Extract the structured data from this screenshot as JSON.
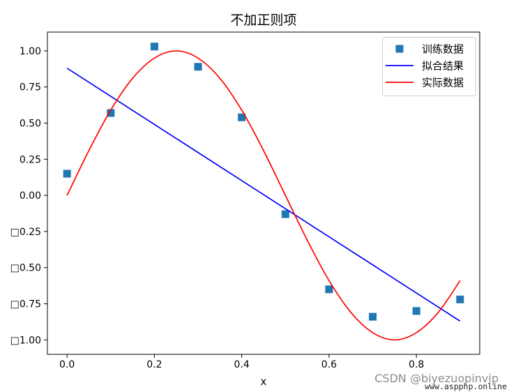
{
  "chart_data": {
    "type": "line",
    "title": "不加正则项",
    "xlabel": "x",
    "xlim": [
      -0.045,
      0.945
    ],
    "ylim": [
      -1.1,
      1.13
    ],
    "xticks": [
      0.0,
      0.2,
      0.4,
      0.6,
      0.8
    ],
    "xtick_labels": [
      "0.0",
      "0.2",
      "0.4",
      "0.6",
      "0.8"
    ],
    "yticks": [
      1.0,
      0.75,
      0.5,
      0.25,
      0.0,
      -0.25,
      -0.5,
      -0.75,
      -1.0
    ],
    "ytick_labels": [
      "1.00",
      "0.75",
      "0.50",
      "0.25",
      "0.00",
      "□0.25",
      "□0.50",
      "□0.75",
      "□1.00"
    ],
    "grid": false,
    "legend_position": "top-right",
    "series": [
      {
        "name": "训练数据",
        "kind": "scatter",
        "marker": "square",
        "color": "#1f77b4",
        "x": [
          0.0,
          0.1,
          0.2,
          0.3,
          0.4,
          0.5,
          0.6,
          0.7,
          0.8,
          0.9
        ],
        "y": [
          0.15,
          0.57,
          1.03,
          0.89,
          0.54,
          -0.13,
          -0.65,
          -0.84,
          -0.8,
          -0.72
        ]
      },
      {
        "name": "拟合结果",
        "kind": "line",
        "color": "#0000ff",
        "x": [
          0.0,
          0.9
        ],
        "y": [
          0.88,
          -0.87
        ]
      },
      {
        "name": "实际数据",
        "kind": "line",
        "color": "#ff0000",
        "x": [
          0.0,
          0.05,
          0.1,
          0.15,
          0.2,
          0.25,
          0.3,
          0.35,
          0.4,
          0.45,
          0.5,
          0.55,
          0.6,
          0.65,
          0.7,
          0.75,
          0.8,
          0.85,
          0.9
        ],
        "y": [
          0.0,
          0.31,
          0.59,
          0.81,
          0.95,
          1.0,
          0.95,
          0.81,
          0.59,
          0.31,
          0.0,
          -0.31,
          -0.59,
          -0.81,
          -0.95,
          -1.0,
          -0.95,
          -0.81,
          -0.59
        ]
      }
    ]
  },
  "watermark": {
    "text": "CSDN @biyezuopinvip",
    "site": "www.aspphp.online"
  }
}
